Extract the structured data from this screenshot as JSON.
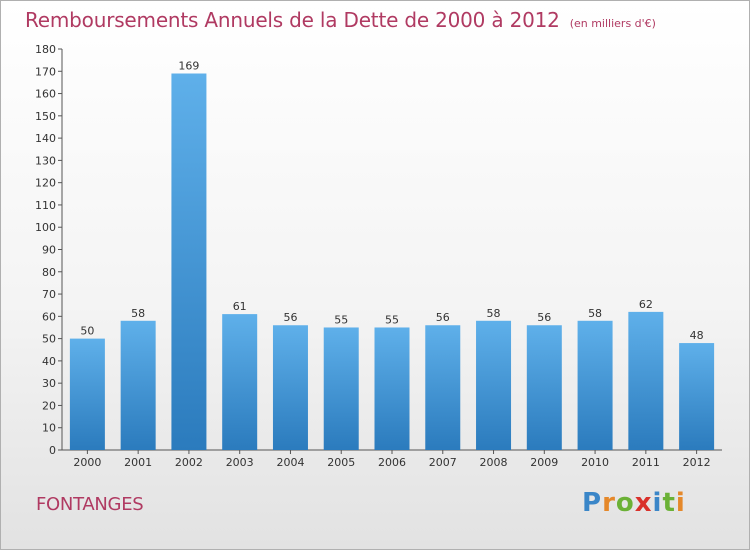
{
  "header": {
    "title": "Remboursements Annuels de la Dette de 2000 à 2012",
    "subtitle": "(en milliers d'€)"
  },
  "commune": "FONTANGES",
  "logo": {
    "text": "Proxiti",
    "letter_colors": [
      "#3a86c8",
      "#e5882a",
      "#6bb136",
      "#d9312b",
      "#3a86c8",
      "#6bb136",
      "#e5882a"
    ]
  },
  "colors": {
    "title": "#b03a62",
    "bar_top": "#5fb0ea",
    "bar_bottom": "#2b7bbd"
  },
  "chart_data": {
    "type": "bar",
    "title": "Remboursements Annuels de la Dette de 2000 à 2012",
    "subtitle": "(en milliers d'€)",
    "xlabel": "",
    "ylabel": "",
    "categories": [
      "2000",
      "2001",
      "2002",
      "2003",
      "2004",
      "2005",
      "2006",
      "2007",
      "2008",
      "2009",
      "2010",
      "2011",
      "2012"
    ],
    "values": [
      50,
      58,
      169,
      61,
      56,
      55,
      55,
      56,
      58,
      56,
      58,
      62,
      48
    ],
    "ylim": [
      0,
      180
    ],
    "yticks": [
      0,
      10,
      20,
      30,
      40,
      50,
      60,
      70,
      80,
      90,
      100,
      110,
      120,
      130,
      140,
      150,
      160,
      170,
      180
    ],
    "grid": false,
    "legend": "none"
  }
}
